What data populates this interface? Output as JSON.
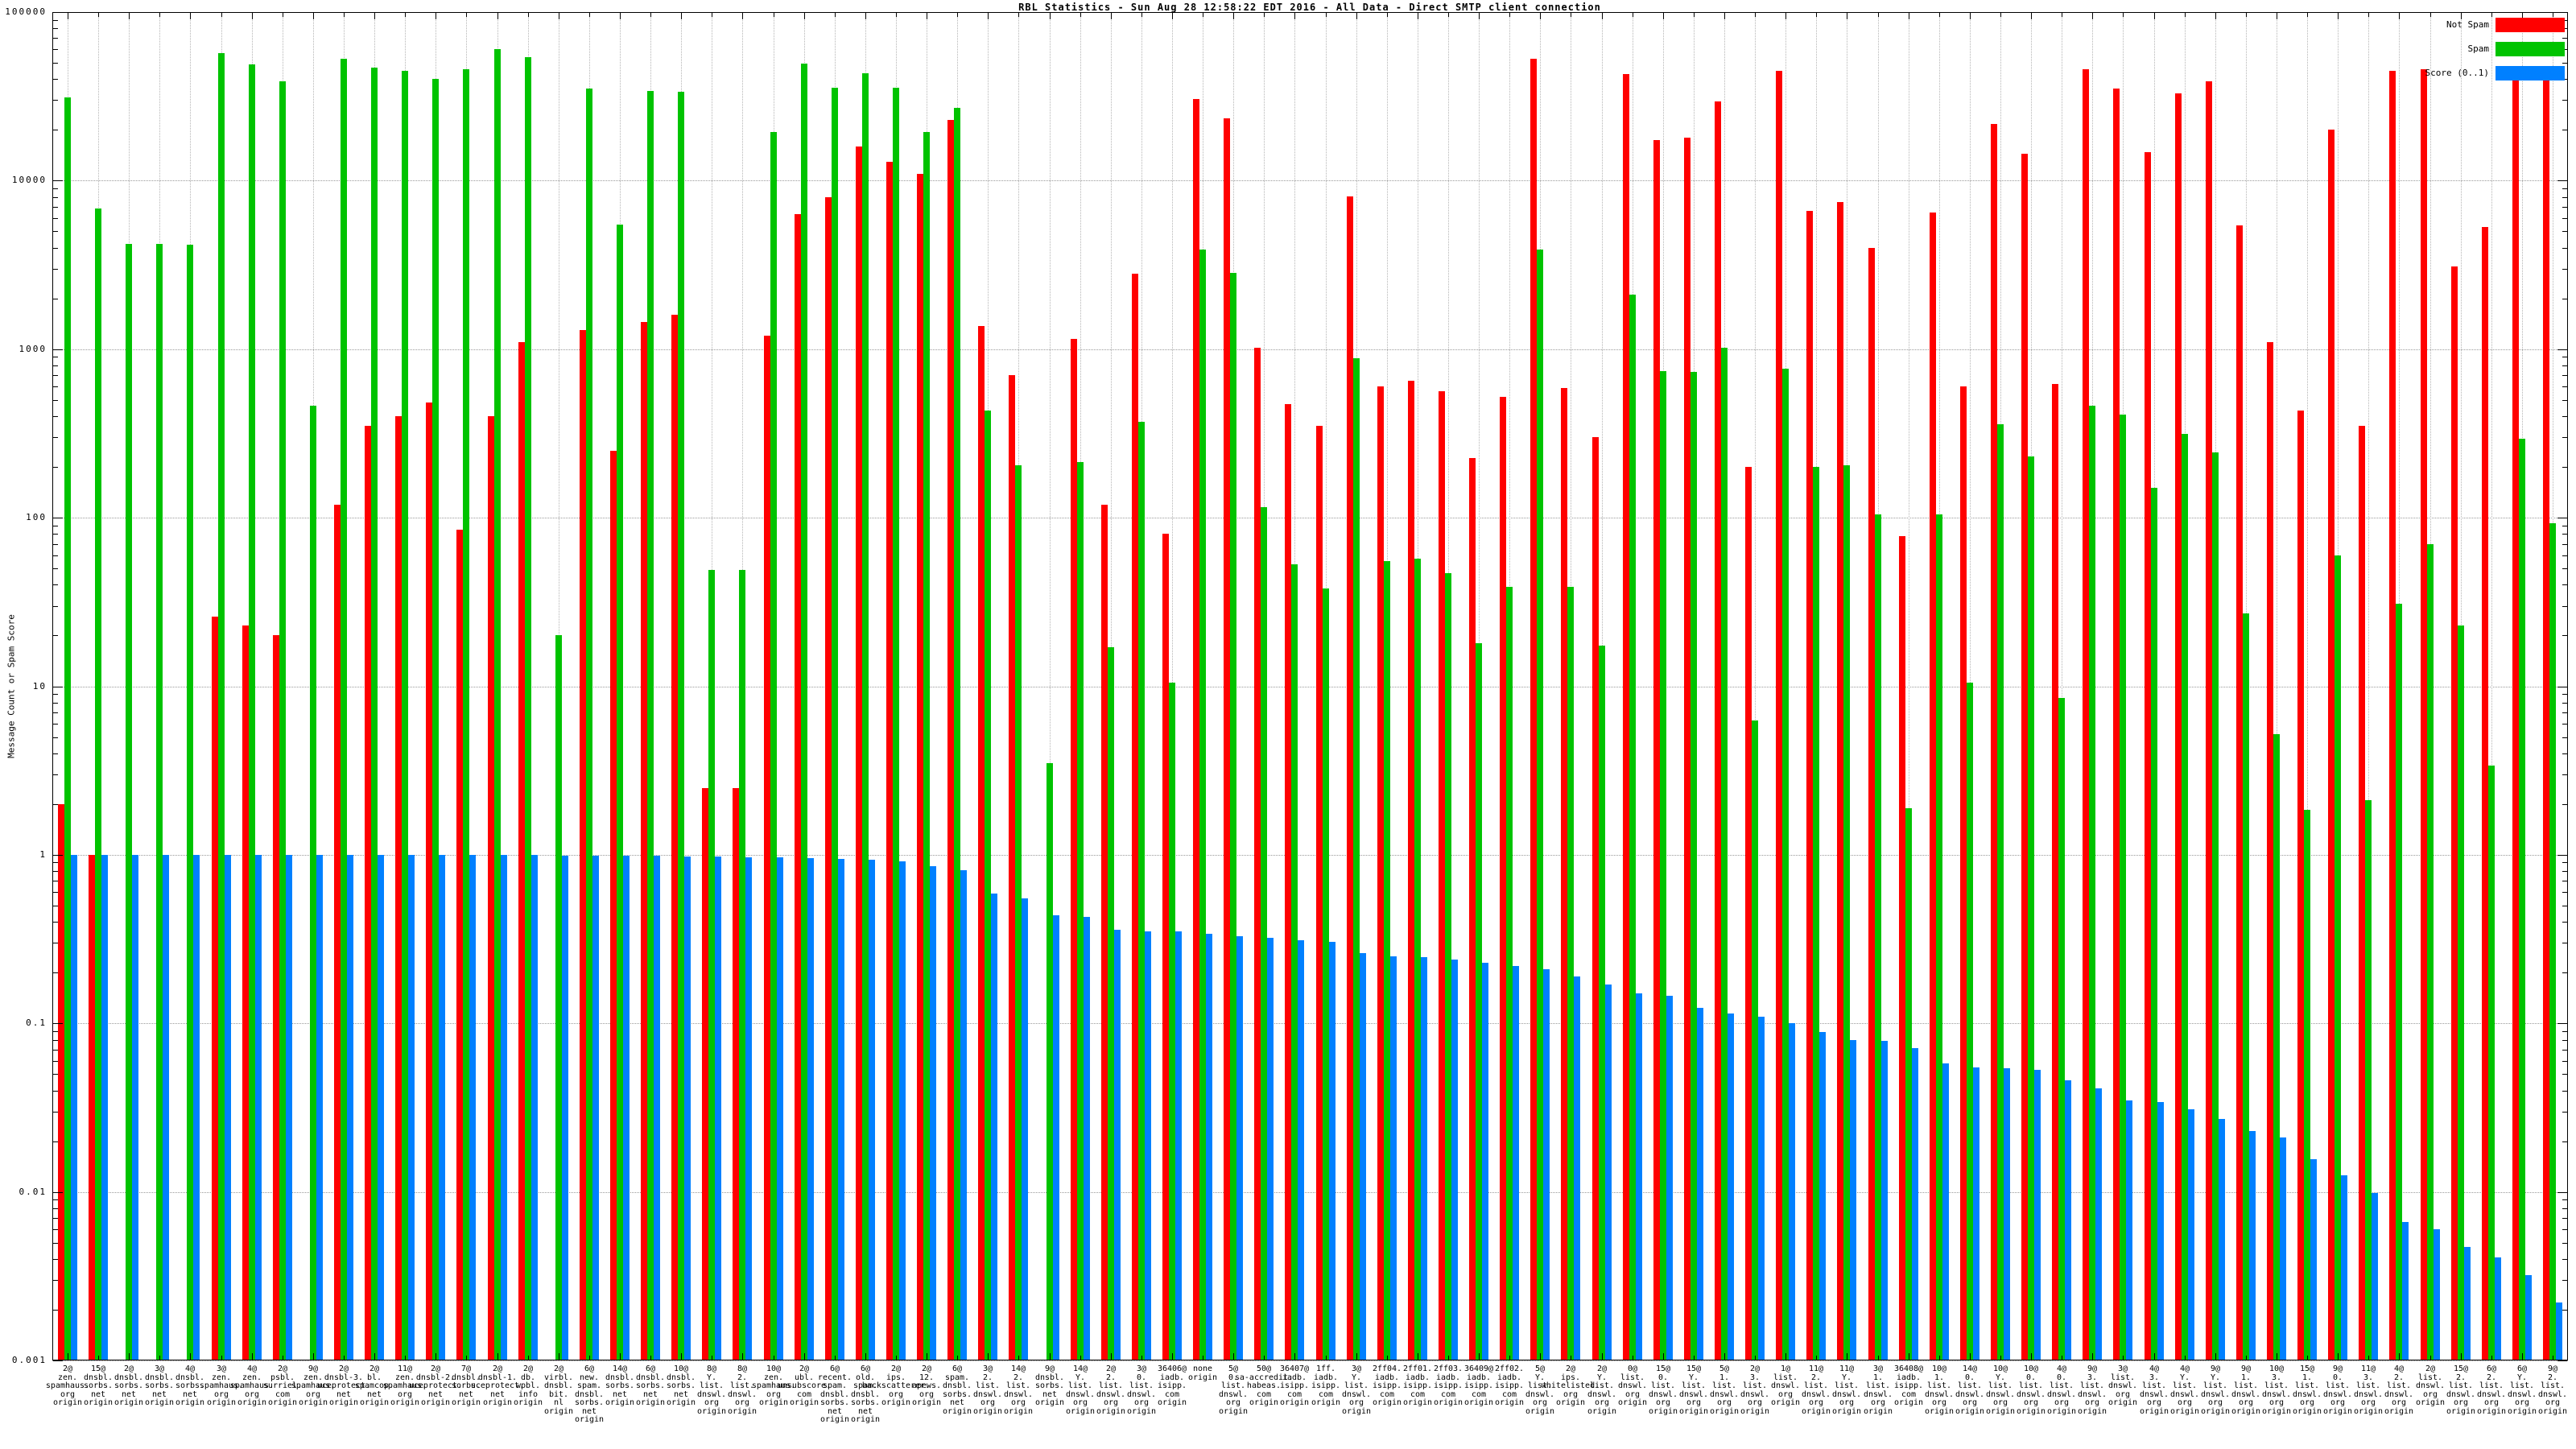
{
  "chart_data": {
    "type": "bar",
    "title": "RBL Statistics - Sun Aug 28 12:58:22 EDT 2016 - All Data - Direct SMTP client connection",
    "ylabel": "Message Count or Spam Score",
    "yscale": "log",
    "ylim": [
      0.001,
      100000
    ],
    "yticks": [
      "100000",
      "10000",
      "1000",
      "100",
      "10",
      "1",
      "0.1",
      "0.01",
      "0.001"
    ],
    "grid": "dotted",
    "legend_position": "top-right-inside",
    "legend": [
      {
        "label": "Not Spam",
        "color": "#ff0000"
      },
      {
        "label": "Spam",
        "color": "#00c300"
      },
      {
        "label": "Score (0..1)",
        "color": "#0080ff"
      }
    ],
    "x_label_suffix": "origin",
    "groups": [
      {
        "label": "2@zen.spamhaus.org",
        "not_spam": 2,
        "spam": 31000,
        "score": 1.0
      },
      {
        "label": "15@dnsbl.sorbs.net",
        "not_spam": 1,
        "spam": 6800,
        "score": 1.0
      },
      {
        "label": "2@dnsbl.sorbs.net",
        "not_spam": 0,
        "spam": 4200,
        "score": 1.0
      },
      {
        "label": "3@dnsbl.sorbs.net",
        "not_spam": 0,
        "spam": 4200,
        "score": 1.0
      },
      {
        "label": "4@dnsbl.sorbs.net",
        "not_spam": 0,
        "spam": 4150,
        "score": 1.0
      },
      {
        "label": "3@zen.spamhaus.org",
        "not_spam": 26,
        "spam": 57000,
        "score": 1.0
      },
      {
        "label": "4@zen.spamhaus.org",
        "not_spam": 23,
        "spam": 49000,
        "score": 1.0
      },
      {
        "label": "2@psbl.surriel.com",
        "not_spam": 20,
        "spam": 39000,
        "score": 1.0
      },
      {
        "label": "9@zen.spamhaus.org",
        "not_spam": 0,
        "spam": 460,
        "score": 1.0
      },
      {
        "label": "2@dnsbl-3.uceprotect.net",
        "not_spam": 120,
        "spam": 53000,
        "score": 1.0
      },
      {
        "label": "2@bl.spamcop.net",
        "not_spam": 350,
        "spam": 47000,
        "score": 1.0
      },
      {
        "label": "11@zen.spamhaus.org",
        "not_spam": 400,
        "spam": 45000,
        "score": 1.0
      },
      {
        "label": "2@dnsbl-2.uceprotect.net",
        "not_spam": 480,
        "spam": 40000,
        "score": 1.0
      },
      {
        "label": "7@dnsbl.sorbs.net",
        "not_spam": 85,
        "spam": 46000,
        "score": 1.0
      },
      {
        "label": "2@dnsbl-1.uceprotect.net",
        "not_spam": 400,
        "spam": 60000,
        "score": 1.0
      },
      {
        "label": "2@db.wpbl.info",
        "not_spam": 1100,
        "spam": 54000,
        "score": 0.995
      },
      {
        "label": "2@virbl.dnsbl.bit.nl",
        "not_spam": 0,
        "spam": 20,
        "score": 0.99
      },
      {
        "label": "6@new.spam.dnsbl.sorbs.net",
        "not_spam": 1300,
        "spam": 35000,
        "score": 0.99
      },
      {
        "label": "14@dnsbl.sorbs.net",
        "not_spam": 250,
        "spam": 5500,
        "score": 0.985
      },
      {
        "label": "6@dnsbl.sorbs.net",
        "not_spam": 1450,
        "spam": 34000,
        "score": 0.985
      },
      {
        "label": "10@dnsbl.sorbs.net",
        "not_spam": 1600,
        "spam": 33500,
        "score": 0.98
      },
      {
        "label": "8@Y.list.dnswl.org",
        "not_spam": 2.5,
        "spam": 49,
        "score": 0.975
      },
      {
        "label": "8@2.list.dnswl.org",
        "not_spam": 2.5,
        "spam": 49,
        "score": 0.97
      },
      {
        "label": "10@zen.spamhaus.org",
        "not_spam": 1200,
        "spam": 19500,
        "score": 0.965
      },
      {
        "label": "2@ubl.unsubscore.com",
        "not_spam": 6300,
        "spam": 49500,
        "score": 0.96
      },
      {
        "label": "6@recent.spam.dnsbl.sorbs.net",
        "not_spam": 8000,
        "spam": 35500,
        "score": 0.95
      },
      {
        "label": "6@old.spam.dnsbl.sorbs.net",
        "not_spam": 16000,
        "spam": 43500,
        "score": 0.94
      },
      {
        "label": "2@ips.backscatterer.org",
        "not_spam": 13000,
        "spam": 35500,
        "score": 0.91
      },
      {
        "label": "2@12.apews.org",
        "not_spam": 11000,
        "spam": 19500,
        "score": 0.86
      },
      {
        "label": "6@spam.dnsbl.sorbs.net",
        "not_spam": 23000,
        "spam": 27000,
        "score": 0.81
      },
      {
        "label": "3@2.list.dnswl.org",
        "not_spam": 1370,
        "spam": 430,
        "score": 0.59
      },
      {
        "label": "14@2.list.dnswl.org",
        "not_spam": 700,
        "spam": 205,
        "score": 0.55
      },
      {
        "label": "9@dnsbl.sorbs.net",
        "not_spam": 0,
        "spam": 3.5,
        "score": 0.44
      },
      {
        "label": "14@Y.list.dnswl.org",
        "not_spam": 1150,
        "spam": 215,
        "score": 0.43
      },
      {
        "label": "2@2.list.dnswl.org",
        "not_spam": 120,
        "spam": 17,
        "score": 0.36
      },
      {
        "label": "3@0.list.dnswl.org",
        "not_spam": 2800,
        "spam": 370,
        "score": 0.35
      },
      {
        "label": "36406@iadb.isipp.com",
        "not_spam": 80,
        "spam": 10.5,
        "score": 0.35
      },
      {
        "label": "none",
        "not_spam": 30500,
        "spam": 3900,
        "score": 0.34
      },
      {
        "label": "5@0.list.dnswl.org",
        "not_spam": 23300,
        "spam": 2850,
        "score": 0.33
      },
      {
        "label": "50@sa-accredit.habeas.com",
        "not_spam": 1020,
        "spam": 115,
        "score": 0.32
      },
      {
        "label": "36407@iadb.isipp.com",
        "not_spam": 470,
        "spam": 53,
        "score": 0.31
      },
      {
        "label": "1ff.iadb.isipp.com",
        "not_spam": 350,
        "spam": 38,
        "score": 0.305
      },
      {
        "label": "3@Y.list.dnswl.org",
        "not_spam": 8100,
        "spam": 880,
        "score": 0.26
      },
      {
        "label": "2ff04.iadb.isipp.com",
        "not_spam": 600,
        "spam": 55,
        "score": 0.25
      },
      {
        "label": "2ff01.iadb.isipp.com",
        "not_spam": 650,
        "spam": 57,
        "score": 0.248
      },
      {
        "label": "2ff03.iadb.isipp.com",
        "not_spam": 565,
        "spam": 47,
        "score": 0.24
      },
      {
        "label": "36409@iadb.isipp.com",
        "not_spam": 225,
        "spam": 18,
        "score": 0.23
      },
      {
        "label": "2ff02.iadb.isipp.com",
        "not_spam": 520,
        "spam": 39,
        "score": 0.22
      },
      {
        "label": "5@Y.list.dnswl.org",
        "not_spam": 53000,
        "spam": 3900,
        "score": 0.21
      },
      {
        "label": "2@ips.whitelisted.org",
        "not_spam": 590,
        "spam": 39,
        "score": 0.19
      },
      {
        "label": "2@Y.list.dnswl.org",
        "not_spam": 300,
        "spam": 17.5,
        "score": 0.17
      },
      {
        "label": "0@list.dnswl.org",
        "not_spam": 43000,
        "spam": 2100,
        "score": 0.15
      },
      {
        "label": "15@0.list.dnswl.org",
        "not_spam": 17400,
        "spam": 740,
        "score": 0.145
      },
      {
        "label": "15@Y.list.dnswl.org",
        "not_spam": 18000,
        "spam": 730,
        "score": 0.123
      },
      {
        "label": "5@1.list.dnswl.org",
        "not_spam": 29500,
        "spam": 1020,
        "score": 0.114
      },
      {
        "label": "2@3.list.dnswl.org",
        "not_spam": 200,
        "spam": 6.3,
        "score": 0.109
      },
      {
        "label": "1@list.dnswl.org",
        "not_spam": 45000,
        "spam": 770,
        "score": 0.1
      },
      {
        "label": "11@2.list.dnswl.org",
        "not_spam": 6600,
        "spam": 200,
        "score": 0.089
      },
      {
        "label": "11@Y.list.dnswl.org",
        "not_spam": 7500,
        "spam": 205,
        "score": 0.08
      },
      {
        "label": "3@1.list.dnswl.org",
        "not_spam": 4000,
        "spam": 105,
        "score": 0.079
      },
      {
        "label": "36408@iadb.isipp.com",
        "not_spam": 78,
        "spam": 1.9,
        "score": 0.071
      },
      {
        "label": "10@1.list.dnswl.org",
        "not_spam": 6500,
        "spam": 105,
        "score": 0.058
      },
      {
        "label": "14@0.list.dnswl.org",
        "not_spam": 600,
        "spam": 10.5,
        "score": 0.055
      },
      {
        "label": "10@Y.list.dnswl.org",
        "not_spam": 21700,
        "spam": 360,
        "score": 0.054
      },
      {
        "label": "10@0.list.dnswl.org",
        "not_spam": 14500,
        "spam": 230,
        "score": 0.053
      },
      {
        "label": "4@0.list.dnswl.org",
        "not_spam": 620,
        "spam": 8.5,
        "score": 0.046
      },
      {
        "label": "9@3.list.dnswl.org",
        "not_spam": 46000,
        "spam": 460,
        "score": 0.041
      },
      {
        "label": "3@list.dnswl.org",
        "not_spam": 35000,
        "spam": 410,
        "score": 0.035
      },
      {
        "label": "4@3.list.dnswl.org",
        "not_spam": 14700,
        "spam": 150,
        "score": 0.034
      },
      {
        "label": "4@Y.list.dnswl.org",
        "not_spam": 33000,
        "spam": 315,
        "score": 0.031
      },
      {
        "label": "9@Y.list.dnswl.org",
        "not_spam": 39000,
        "spam": 245,
        "score": 0.027
      },
      {
        "label": "9@1.list.dnswl.org",
        "not_spam": 5400,
        "spam": 27,
        "score": 0.023
      },
      {
        "label": "10@3.list.dnswl.org",
        "not_spam": 1100,
        "spam": 5.2,
        "score": 0.021
      },
      {
        "label": "15@1.list.dnswl.org",
        "not_spam": 430,
        "spam": 1.85,
        "score": 0.0156
      },
      {
        "label": "9@0.list.dnswl.org",
        "not_spam": 20000,
        "spam": 60,
        "score": 0.0126
      },
      {
        "label": "11@3.list.dnswl.org",
        "not_spam": 350,
        "spam": 2.1,
        "score": 0.0099
      },
      {
        "label": "4@2.list.dnswl.org",
        "not_spam": 45000,
        "spam": 31,
        "score": 0.0066
      },
      {
        "label": "2@list.dnswl.org",
        "not_spam": 46000,
        "spam": 70,
        "score": 0.006
      },
      {
        "label": "15@2.list.dnswl.org",
        "not_spam": 3100,
        "spam": 23,
        "score": 0.0047
      },
      {
        "label": "6@2.list.dnswl.org",
        "not_spam": 5300,
        "spam": 3.4,
        "score": 0.0041
      },
      {
        "label": "6@Y.list.dnswl.org",
        "not_spam": 46000,
        "spam": 295,
        "score": 0.0032
      },
      {
        "label": "9@2.list.dnswl.org",
        "not_spam": 48000,
        "spam": 93,
        "score": 0.0022
      }
    ]
  }
}
